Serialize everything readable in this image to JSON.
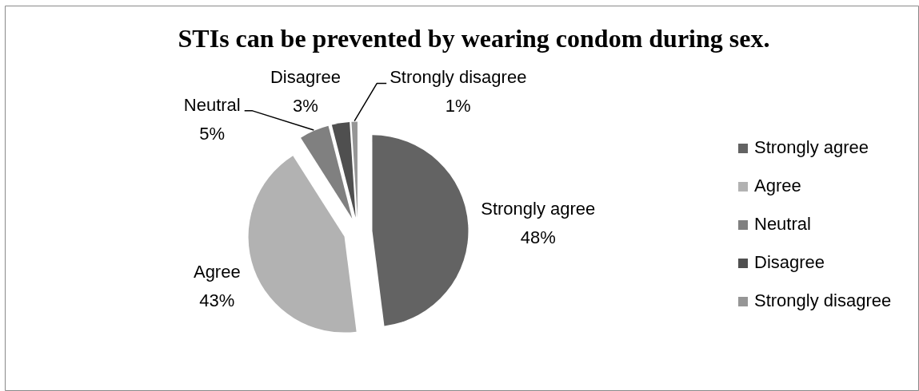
{
  "chart_data": {
    "type": "pie",
    "title": "STIs can be prevented by wearing condom during sex.",
    "categories": [
      "Strongly agree",
      "Agree",
      "Neutral",
      "Disagree",
      "Strongly disagree"
    ],
    "values": [
      48,
      43,
      5,
      3,
      1
    ],
    "colors": [
      "#636363",
      "#b2b2b2",
      "#808080",
      "#4f4f4f",
      "#969696"
    ],
    "value_labels": [
      "48%",
      "43%",
      "5%",
      "3%",
      "1%"
    ],
    "legend": "right"
  }
}
